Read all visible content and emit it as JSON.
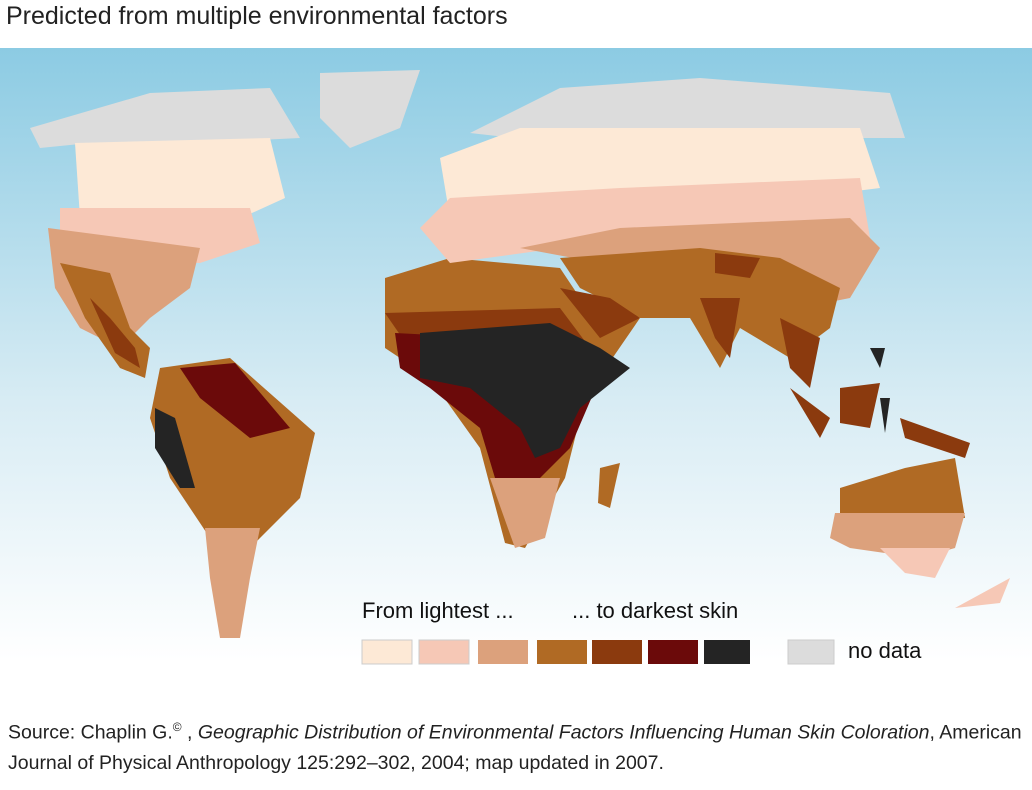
{
  "header": {
    "subtitle": "Predicted from multiple environmental factors"
  },
  "legend": {
    "from_label": "From lightest ...",
    "to_label": "... to darkest skin",
    "no_data_label": "no data"
  },
  "source": {
    "prefix": "Source: Chaplin G.",
    "mark": "©",
    "after_mark": " , ",
    "title": "Geographic Distribution of Environmental Factors Influencing Human Skin Coloration",
    "rest": ", American Journal of Physical Anthropology 125:292–302, 2004; map updated in 2007."
  }
}
